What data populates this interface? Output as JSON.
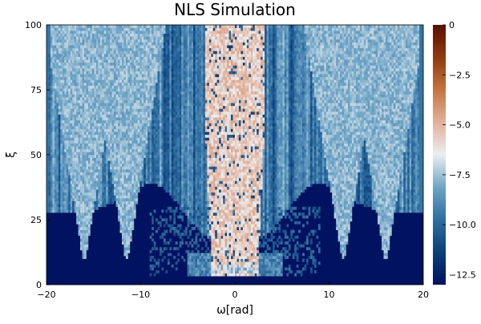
{
  "chart_data": {
    "type": "heatmap",
    "title": "NLS Simulation",
    "xlabel": "ω[rad]",
    "ylabel": "ξ",
    "xlim": [
      -20,
      20
    ],
    "ylim": [
      0,
      100
    ],
    "x_ticks": [
      -20,
      -10,
      0,
      10,
      20
    ],
    "x_tick_labels": [
      "−20",
      "−10",
      "0",
      "10",
      "20"
    ],
    "y_ticks": [
      0,
      25,
      50,
      75,
      100
    ],
    "y_tick_labels": [
      "0",
      "25",
      "50",
      "75",
      "100"
    ],
    "colorbar": {
      "colormap": "vik",
      "range": [
        -13,
        0
      ],
      "ticks": [
        -12.5,
        -10,
        -7.5,
        -5,
        -2.5,
        0
      ],
      "tick_labels": [
        "−12.5",
        "−10.0",
        "−7.5",
        "−5.0",
        "−2.5",
        "0"
      ],
      "colors": [
        "#001260",
        "#0b3f78",
        "#2d6da0",
        "#6fa5c6",
        "#eaeef0",
        "#e3b19a",
        "#c47440",
        "#8f3a10",
        "#591000"
      ]
    },
    "features": {
      "central_band_halfwidth_rad": 3,
      "central_band_level": -4.5,
      "background_level": -12.8,
      "spectral_lobes_rad": [
        -16,
        -11.5,
        11.5,
        16
      ]
    },
    "grid": false,
    "legend": "none"
  }
}
